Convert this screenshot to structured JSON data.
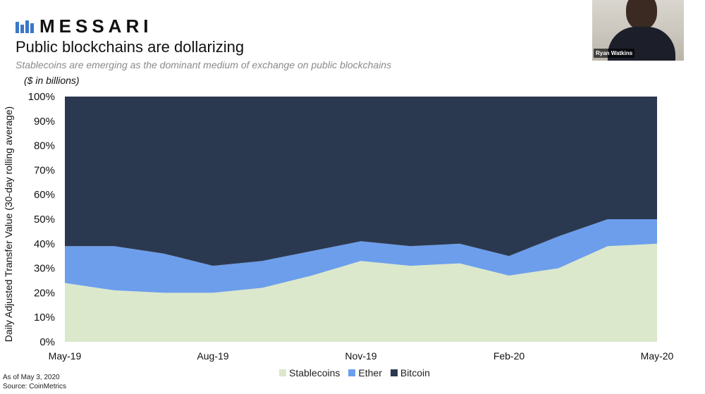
{
  "header": {
    "brand": "MESSARI",
    "title": "Public blockchains are dollarizing",
    "subtitle": "Stablecoins are emerging as the dominant medium of exchange on public blockchains",
    "unit_note": "($ in billions)"
  },
  "webcam": {
    "name": "Ryan Watkins"
  },
  "footnotes": {
    "date": "As of May 3, 2020",
    "source": "Source: CoinMetrics"
  },
  "colors": {
    "stablecoins": "#dbe8cb",
    "ether": "#6d9eeb",
    "bitcoin": "#2b3950"
  },
  "chart_data": {
    "type": "area",
    "stacked": true,
    "normalized": "percent",
    "title": "Public blockchains are dollarizing",
    "ylabel": "Daily Adjusted Transfer Value (30-day rolling average)",
    "xlabel": "",
    "ylim": [
      0,
      100
    ],
    "yticks": [
      "0%",
      "10%",
      "20%",
      "30%",
      "40%",
      "50%",
      "60%",
      "70%",
      "80%",
      "90%",
      "100%"
    ],
    "xticks": [
      "May-19",
      "Aug-19",
      "Nov-19",
      "Feb-20",
      "May-20"
    ],
    "legend": [
      "Stablecoins",
      "Ether",
      "Bitcoin"
    ],
    "legend_position": "bottom-center",
    "x": [
      "May-19",
      "Jun-19",
      "Jul-19",
      "Aug-19",
      "Sep-19",
      "Oct-19",
      "Nov-19",
      "Dec-19",
      "Jan-20",
      "Feb-20",
      "Mar-20",
      "Apr-20",
      "May-20"
    ],
    "series": [
      {
        "name": "Stablecoins",
        "values": [
          24,
          21,
          20,
          20,
          22,
          27,
          33,
          31,
          32,
          27,
          30,
          39,
          40
        ]
      },
      {
        "name": "Ether",
        "values": [
          15,
          18,
          16,
          11,
          11,
          10,
          8,
          8,
          8,
          8,
          13,
          11,
          10
        ]
      },
      {
        "name": "Bitcoin",
        "values": [
          61,
          61,
          64,
          69,
          67,
          63,
          59,
          61,
          60,
          65,
          57,
          50,
          50
        ]
      }
    ]
  }
}
